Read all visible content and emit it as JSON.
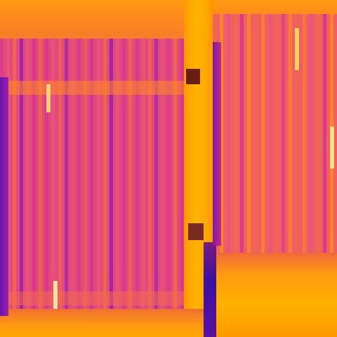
{
  "image": {
    "kind": "thermal-camera-style close-up",
    "palette": {
      "deep_purple": "#5a10a0",
      "violet": "#9a1fb0",
      "magenta": "#d8358e",
      "pink": "#e9557a",
      "coral": "#f06a4a",
      "orange": "#ff8a1e",
      "amber": "#ffa500",
      "yellow": "#ffc21a",
      "dark_brown": "#6a1e10",
      "pale": "#ffe0a0"
    }
  }
}
